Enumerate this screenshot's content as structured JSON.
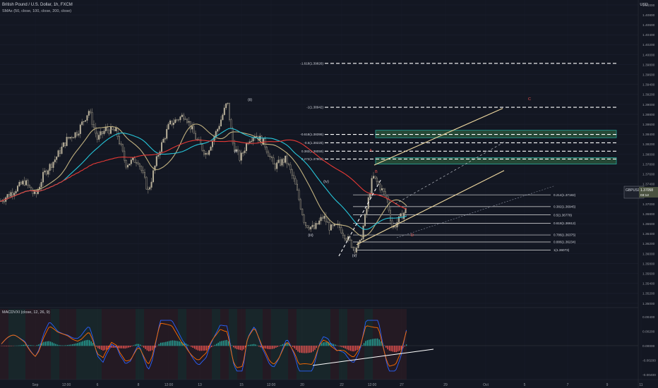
{
  "header": {
    "title": "British Pound / U.S. Dollar, 1h, FXCM",
    "indicator": "SMAs (50, close, 100, close, 200, close)"
  },
  "currency_label": "USD",
  "pair_label": "GBPUSD",
  "last_price": "1.37058",
  "countdown": "03:12",
  "macd_title": "MACDVXI (close, 12, 26, 9)",
  "chart_data": {
    "type": "line",
    "ohlc_y_range": [
      1.349,
      1.412
    ],
    "y_ticks": [
      "1.41000",
      "1.40800",
      "1.40600",
      "1.40400",
      "1.40200",
      "1.40000",
      "1.39800",
      "1.39600",
      "1.39400",
      "1.39200",
      "1.39000",
      "1.38800",
      "1.38600",
      "1.38400",
      "1.38200",
      "1.38000",
      "1.37800",
      "1.37600",
      "1.37400",
      "1.37200",
      "1.37000",
      "1.36800",
      "1.36600",
      "1.36400",
      "1.36200",
      "1.36000",
      "1.35800",
      "1.35600",
      "1.35400",
      "1.35200",
      "1.35000"
    ],
    "macd_ticks": [
      "0.00400",
      "0.00200",
      "0.00000",
      "-0.00200",
      "-0.00400"
    ],
    "x_ticks": [
      "Sep",
      "12:00",
      "6",
      "8",
      "12:00",
      "13",
      "15",
      "12:00",
      "20",
      "22",
      "12:00",
      "27",
      "29",
      "Oct",
      "5",
      "7",
      "9",
      "11"
    ],
    "series": [
      {
        "name": "SMA 50",
        "color": "#c2b280"
      },
      {
        "name": "SMA 100",
        "color": "#26c6da"
      },
      {
        "name": "SMA 200",
        "color": "#e53935"
      }
    ],
    "fib_levels": [
      {
        "label": "-1.618(1.39826)",
        "value": 1.39826
      },
      {
        "label": "-1(1.38942)",
        "value": 1.38942
      },
      {
        "label": "-0.618(1.38396)",
        "value": 1.38396
      },
      {
        "label": "-0.5(1.38228)",
        "value": 1.38228
      },
      {
        "label": "0.382(1.38059)",
        "value": 1.38059
      },
      {
        "label": "0.272(1.37902)",
        "value": 1.37902
      },
      {
        "label": "0.214(1.37182)",
        "value": 1.37182
      },
      {
        "label": "0.382(1.36945)",
        "value": 1.36945
      },
      {
        "label": "0.5(1.36778)",
        "value": 1.36778
      },
      {
        "label": "0.618(1.36612)",
        "value": 1.36612
      },
      {
        "label": "0.786(1.36375)",
        "value": 1.36375
      },
      {
        "label": "0.886(1.36234)",
        "value": 1.36234
      },
      {
        "label": "1(1.36073)",
        "value": 1.36073
      }
    ],
    "zones": [
      {
        "from": 1.3833,
        "to": 1.3848
      },
      {
        "from": 1.378,
        "to": 1.3793
      }
    ],
    "wave_labels": [
      "(ii)",
      "(i)",
      "(iii)",
      "(iv)",
      "(v)",
      "A",
      "B",
      "C",
      "D"
    ]
  }
}
